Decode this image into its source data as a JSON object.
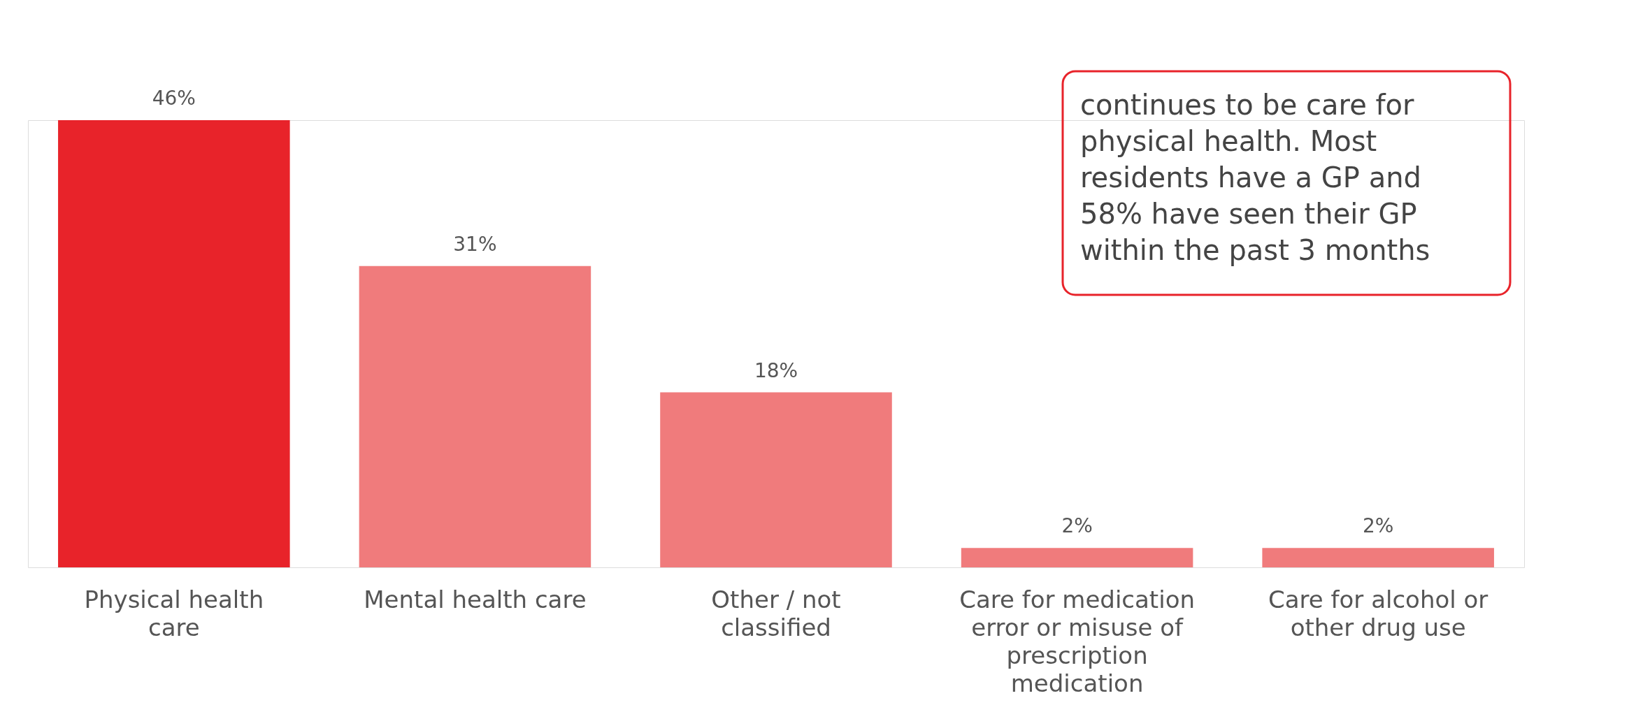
{
  "chart_data": {
    "type": "bar",
    "categories": [
      "Physical health care",
      "Mental health care",
      "Other / not classified",
      "Care for medication error or misuse of prescription medication",
      "Care for alcohol or other drug use"
    ],
    "values": [
      46,
      31,
      18,
      2,
      2
    ],
    "colors": [
      "#e8232a",
      "#f07b7c",
      "#f07b7c",
      "#f07b7c",
      "#f07b7c"
    ],
    "value_labels": [
      "46%",
      "31%",
      "18%",
      "2%",
      "2%"
    ],
    "annotations": [
      "continues to be care for physical health. Most residents have a GP and 58% have seen their GP within the past 3 months"
    ]
  }
}
